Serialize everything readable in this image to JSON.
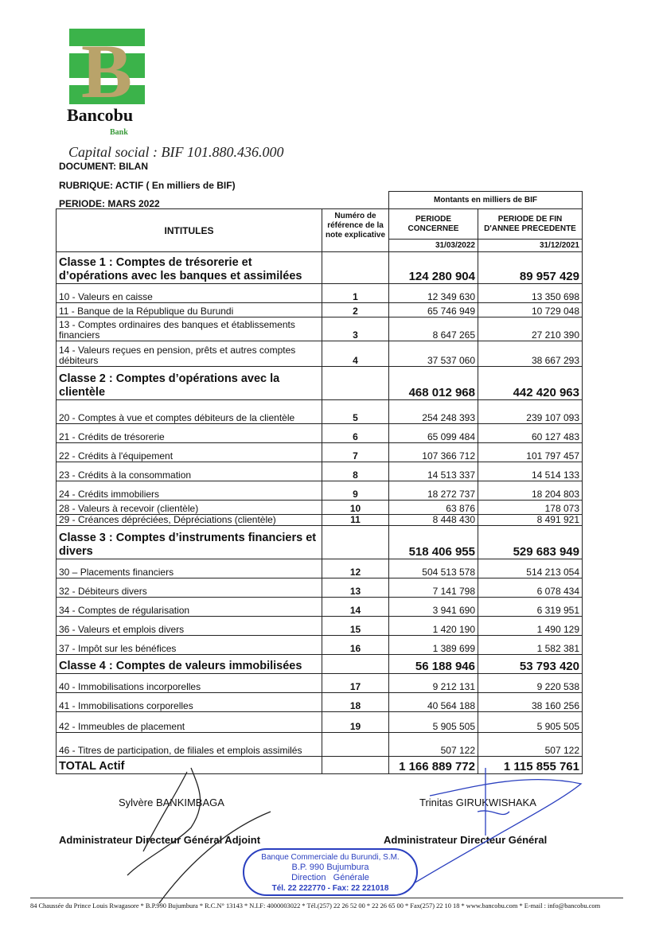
{
  "logo": {
    "letter": "B",
    "name": "Bancobu",
    "sub": "Bank",
    "colors": {
      "green": "#3bb34a",
      "gold": "#b9a36a"
    }
  },
  "capital": "Capital social : BIF 101.880.436.000",
  "document": "DOCUMENT:  BILAN",
  "rubrique": "RUBRIQUE:  ACTIF ( En milliers de BIF)",
  "periode": "PERIODE: MARS 2022",
  "table": {
    "montants_header": "Montants en milliers de BIF",
    "col_intitules": "INTITULES",
    "col_ref": "Numéro de référence de la note explicative",
    "col_current": "PERIODE CONCERNEE",
    "col_previous": "PERIODE DE FIN D'ANNEE PRECEDENTE",
    "date_current": "31/03/2022",
    "date_previous": "31/12/2021",
    "rows": [
      {
        "type": "class",
        "label": "Classe 1 : Comptes de trésorerie et d’opérations avec les banques et assimilées",
        "ref": "",
        "current": "124 280 904",
        "previous": "89 957 429"
      },
      {
        "type": "item",
        "label": "10 - Valeurs en caisse",
        "ref": "1",
        "current": "12 349 630",
        "previous": "13 350 698"
      },
      {
        "type": "item",
        "label": "11 - Banque de la République du Burundi",
        "ref": "2",
        "current": "65 746 949",
        "previous": "10 729 048"
      },
      {
        "type": "item",
        "label": "13 - Comptes ordinaires des banques et établissements financiers",
        "ref": "3",
        "current": "8 647 265",
        "previous": "27 210 390"
      },
      {
        "type": "item",
        "label": "14 - Valeurs reçues en pension, prêts et autres comptes débiteurs",
        "ref": "4",
        "current": "37 537 060",
        "previous": "38 667 293"
      },
      {
        "type": "class",
        "label": "Classe 2 : Comptes d’opérations avec la clientèle",
        "ref": "",
        "current": "468 012 968",
        "previous": "442 420 963"
      },
      {
        "type": "item",
        "label": "20 - Comptes à vue et comptes débiteurs de la clientèle",
        "ref": "5",
        "current": "254 248 393",
        "previous": "239 107 093"
      },
      {
        "type": "item",
        "label": "21 - Crédits de trésorerie",
        "ref": "6",
        "current": "65 099 484",
        "previous": "60 127 483"
      },
      {
        "type": "item",
        "label": "22 - Crédits à l'équipement",
        "ref": "7",
        "current": "107 366 712",
        "previous": "101 797 457"
      },
      {
        "type": "item",
        "label": "23 - Crédits à la consommation",
        "ref": "8",
        "current": "14 513 337",
        "previous": "14 514 133"
      },
      {
        "type": "item",
        "label": "24 - Crédits immobiliers",
        "ref": "9",
        "current": "18 272 737",
        "previous": "18 204 803"
      },
      {
        "type": "item",
        "label": "28 - Valeurs à recevoir (clientèle)",
        "ref": "10",
        "current": "63 876",
        "previous": "178 073"
      },
      {
        "type": "item",
        "label": "29 - Créances dépréciées, Dépréciations (clientèle)",
        "ref": "11",
        "current": "8 448 430",
        "previous": "8 491 921"
      },
      {
        "type": "class",
        "label": "Classe 3 : Comptes d’instruments financiers et divers",
        "ref": "",
        "current": "518 406 955",
        "previous": "529 683 949"
      },
      {
        "type": "item",
        "label": "30 – Placements financiers",
        "ref": "12",
        "current": "504 513 578",
        "previous": "514 213 054"
      },
      {
        "type": "item",
        "label": "32 - Débiteurs divers",
        "ref": "13",
        "current": "7 141 798",
        "previous": "6 078 434"
      },
      {
        "type": "item",
        "label": "34 - Comptes de régularisation",
        "ref": "14",
        "current": "3 941 690",
        "previous": "6 319 951"
      },
      {
        "type": "item",
        "label": "36 - Valeurs et emplois divers",
        "ref": "15",
        "current": "1 420 190",
        "previous": "1 490 129"
      },
      {
        "type": "item",
        "label": "37 - Impôt sur les bénéfices",
        "ref": "16",
        "current": "1 389 699",
        "previous": "1 582 381"
      },
      {
        "type": "class",
        "label": "Classe 4 : Comptes de valeurs immobilisées",
        "ref": "",
        "current": "56 188 946",
        "previous": "53 793 420"
      },
      {
        "type": "item",
        "label": "40 - Immobilisations incorporelles",
        "ref": "17",
        "current": "9 212 131",
        "previous": "9 220 538"
      },
      {
        "type": "item",
        "label": "41 - Immobilisations corporelles",
        "ref": "18",
        "current": "40 564 188",
        "previous": "38 160 256"
      },
      {
        "type": "item",
        "label": "42 - Immeubles de placement",
        "ref": "19",
        "current": "5 905 505",
        "previous": "5 905 505"
      },
      {
        "type": "item",
        "label": "46 - Titres de participation, de filiales et emplois assimilés",
        "ref": "",
        "current": "507 122",
        "previous": "507 122"
      },
      {
        "type": "total",
        "label": "TOTAL Actif",
        "ref": "",
        "current": "1 166 889 772",
        "previous": "1 115 855 761"
      }
    ]
  },
  "signatures": {
    "left_name": "Sylvère BANKIMBAGA",
    "left_title": "Administrateur Directeur Général Adjoint",
    "right_name": "Trinitas GIRUKWISHAKA",
    "right_title": "Administrateur Directeur Général"
  },
  "stamp": {
    "ring": "Banque Commerciale du Burundi, S.M.",
    "line1": "B.P. 990 Bujumbura",
    "line2": "Direction   Générale",
    "bottom": "Tél. 22 222770 - Fax: 22 221018",
    "color": "#2a3fbf"
  },
  "footer": "84 Chaussée du Prince Louis Rwagasore *   B.P.990 Bujumbura * R.C.N° 13143 * N.I.F: 4000003022 * Tél.(257) 22 26 52 00 * 22 26 65 00  * Fax(257) 22 10 18 * www.bancobu.com * E-mail : info@bancobu.com"
}
